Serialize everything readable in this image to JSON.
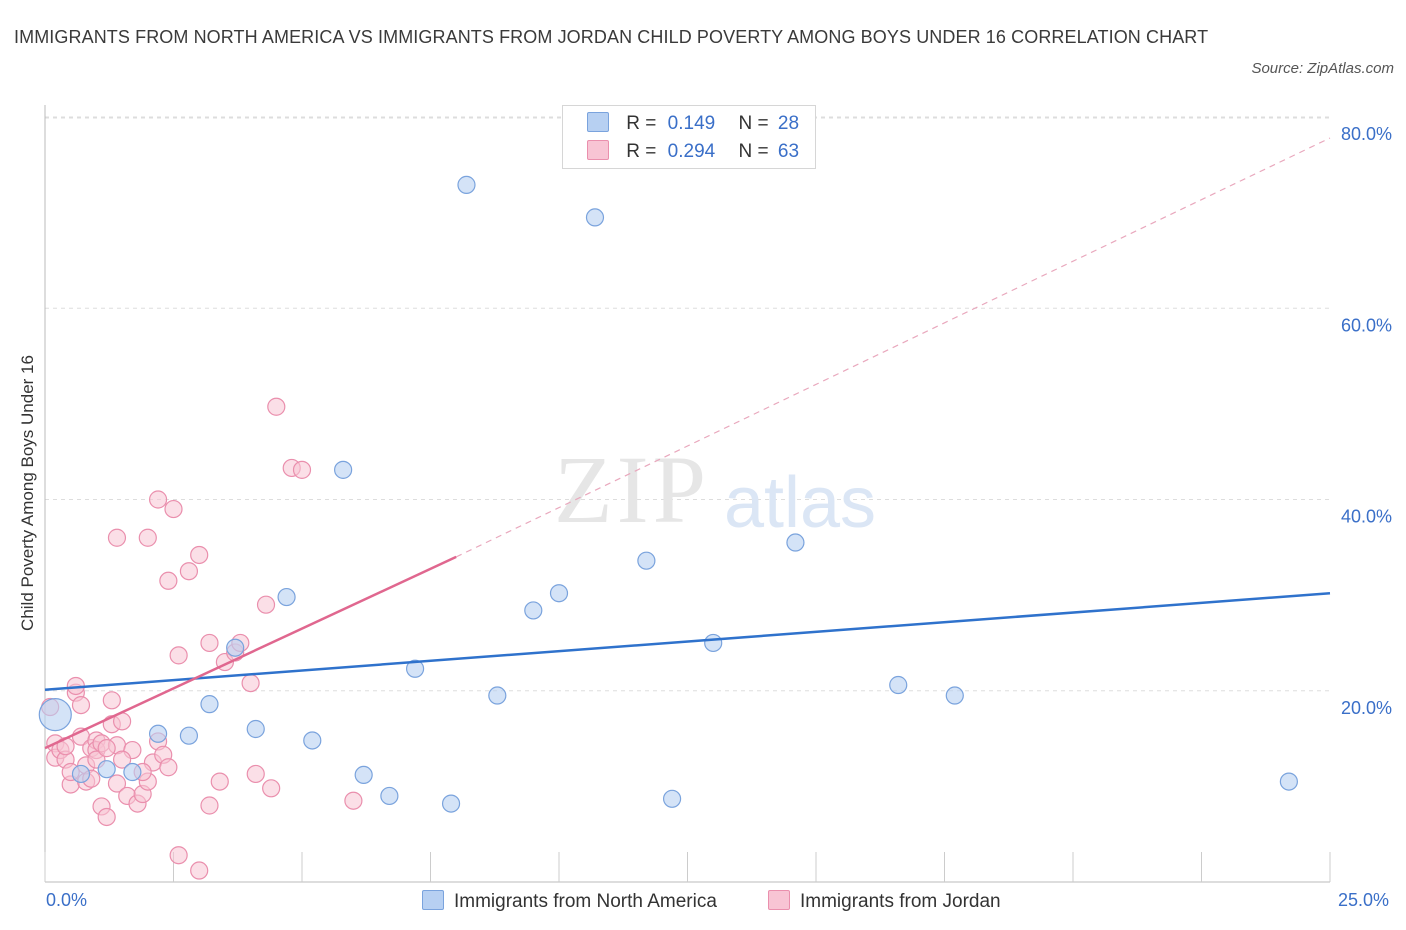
{
  "header": {
    "title": "IMMIGRANTS FROM NORTH AMERICA VS IMMIGRANTS FROM JORDAN CHILD POVERTY AMONG BOYS UNDER 16 CORRELATION CHART",
    "source": "Source: ZipAtlas.com"
  },
  "watermark": {
    "zip": "ZIP",
    "atlas": "atlas"
  },
  "colors": {
    "blue_fill": "#b7d0f2",
    "blue_stroke": "#7aa3dd",
    "blue_line": "#2f72cc",
    "pink_fill": "#f8c4d4",
    "pink_stroke": "#ea8fad",
    "pink_line": "#e0678f",
    "tick_text": "#3a6fc8",
    "grid": "#dddddd"
  },
  "legend": {
    "series1": {
      "r_label": "R =",
      "r_value": "0.149",
      "n_label": "N =",
      "n_value": "28"
    },
    "series2": {
      "r_label": "R =",
      "r_value": "0.294",
      "n_label": "N =",
      "n_value": "63"
    }
  },
  "chart_data": {
    "type": "scatter",
    "title": "IMMIGRANTS FROM NORTH AMERICA VS IMMIGRANTS FROM JORDAN CHILD POVERTY AMONG BOYS UNDER 16 CORRELATION CHART",
    "xlabel": "",
    "ylabel": "Child Poverty Among Boys Under 16",
    "xlim": [
      0,
      25
    ],
    "ylim": [
      0,
      80
    ],
    "x_tick_labels": [
      "0.0%",
      "25.0%"
    ],
    "y_ticks": [
      20,
      40,
      60,
      80
    ],
    "y_tick_labels": [
      "20.0%",
      "40.0%",
      "60.0%",
      "80.0%"
    ],
    "series": [
      {
        "name": "Immigrants from North America",
        "color": "#b7d0f2",
        "trend": {
          "x0": 0,
          "y0": 20.1,
          "x1": 25,
          "y1": 30.2,
          "dashed_from": null
        },
        "points": [
          [
            0.2,
            17.5
          ],
          [
            0.7,
            11.3
          ],
          [
            1.2,
            11.8
          ],
          [
            1.7,
            11.5
          ],
          [
            2.2,
            15.5
          ],
          [
            2.8,
            15.3
          ],
          [
            3.2,
            18.6
          ],
          [
            3.7,
            24.5
          ],
          [
            4.1,
            16.0
          ],
          [
            4.7,
            29.8
          ],
          [
            5.2,
            14.8
          ],
          [
            5.8,
            43.1
          ],
          [
            6.2,
            11.2
          ],
          [
            6.7,
            9.0
          ],
          [
            7.2,
            22.3
          ],
          [
            7.9,
            8.2
          ],
          [
            8.2,
            72.9
          ],
          [
            8.8,
            19.5
          ],
          [
            9.5,
            28.4
          ],
          [
            10.0,
            30.2
          ],
          [
            10.7,
            69.5
          ],
          [
            11.7,
            33.6
          ],
          [
            12.2,
            8.7
          ],
          [
            13.0,
            25.0
          ],
          [
            14.6,
            35.5
          ],
          [
            16.6,
            20.6
          ],
          [
            17.7,
            19.5
          ],
          [
            24.2,
            10.5
          ]
        ]
      },
      {
        "name": "Immigrants from Jordan",
        "color": "#f8c4d4",
        "trend": {
          "x0": 0,
          "y0": 14.0,
          "x1": 8.0,
          "y1": 34.0,
          "dashed_to_x": 25,
          "dashed_to_y": 77.8
        },
        "points": [
          [
            0.1,
            18.3
          ],
          [
            0.2,
            14.5
          ],
          [
            0.2,
            13.0
          ],
          [
            0.3,
            13.8
          ],
          [
            0.4,
            12.8
          ],
          [
            0.5,
            10.2
          ],
          [
            0.5,
            11.5
          ],
          [
            0.6,
            19.8
          ],
          [
            0.6,
            20.5
          ],
          [
            0.7,
            18.5
          ],
          [
            0.7,
            15.2
          ],
          [
            0.8,
            10.5
          ],
          [
            0.8,
            12.2
          ],
          [
            0.9,
            14.0
          ],
          [
            1.0,
            14.8
          ],
          [
            1.0,
            13.8
          ],
          [
            1.1,
            14.5
          ],
          [
            1.1,
            7.9
          ],
          [
            1.2,
            6.8
          ],
          [
            1.3,
            16.5
          ],
          [
            1.3,
            19.0
          ],
          [
            1.4,
            14.3
          ],
          [
            1.4,
            10.3
          ],
          [
            1.5,
            16.8
          ],
          [
            1.6,
            9.0
          ],
          [
            1.7,
            13.8
          ],
          [
            1.8,
            8.2
          ],
          [
            1.9,
            9.2
          ],
          [
            2.0,
            10.5
          ],
          [
            2.1,
            12.5
          ],
          [
            2.2,
            14.7
          ],
          [
            2.3,
            13.3
          ],
          [
            2.0,
            36.0
          ],
          [
            2.2,
            40.0
          ],
          [
            2.4,
            31.5
          ],
          [
            2.5,
            39.0
          ],
          [
            2.6,
            23.7
          ],
          [
            2.8,
            32.5
          ],
          [
            3.0,
            34.2
          ],
          [
            3.2,
            25.0
          ],
          [
            3.4,
            10.5
          ],
          [
            3.5,
            23.0
          ],
          [
            3.7,
            24.0
          ],
          [
            3.8,
            25.0
          ],
          [
            4.0,
            20.8
          ],
          [
            4.1,
            11.3
          ],
          [
            4.3,
            29.0
          ],
          [
            4.4,
            9.8
          ],
          [
            4.5,
            49.7
          ],
          [
            4.8,
            43.3
          ],
          [
            5.0,
            43.1
          ],
          [
            1.4,
            36.0
          ],
          [
            2.6,
            2.8
          ],
          [
            3.0,
            1.2
          ],
          [
            3.2,
            8.0
          ],
          [
            6.0,
            8.5
          ],
          [
            1.0,
            12.8
          ],
          [
            1.5,
            12.8
          ],
          [
            2.4,
            12.0
          ],
          [
            0.9,
            10.8
          ],
          [
            1.9,
            11.5
          ],
          [
            0.4,
            14.2
          ],
          [
            1.2,
            14.0
          ]
        ]
      }
    ],
    "watermark": "ZIPatlas",
    "legend_position": "top-center and bottom"
  },
  "bottom_legend": {
    "series1_label": "Immigrants from North America",
    "series2_label": "Immigrants from Jordan"
  }
}
